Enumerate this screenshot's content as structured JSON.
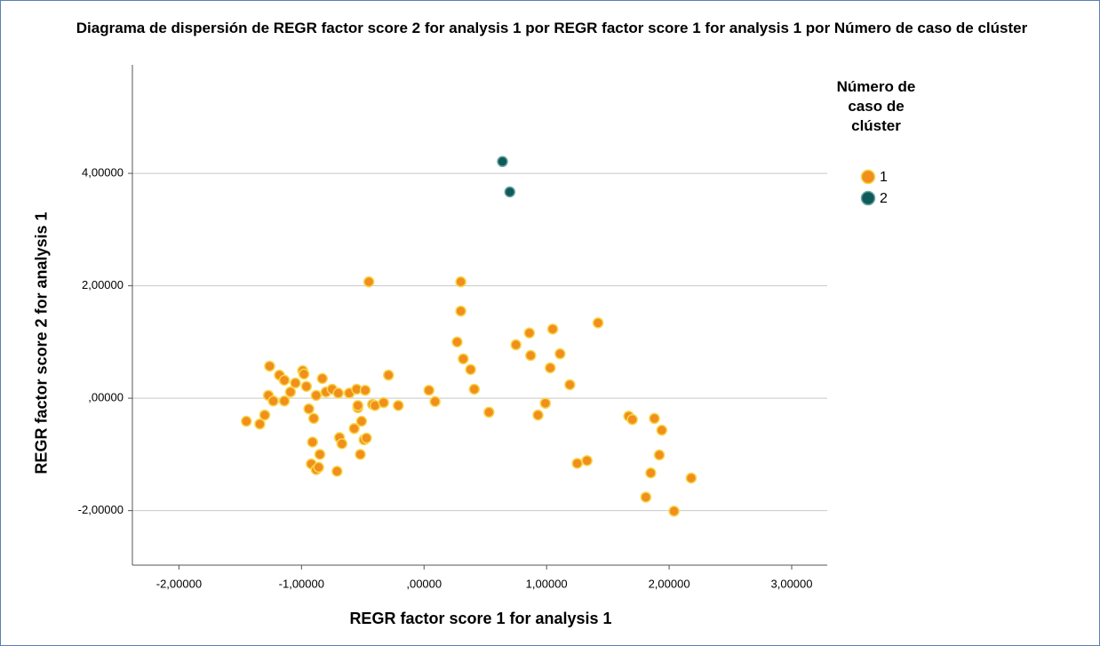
{
  "chart_data": {
    "type": "scatter",
    "title": "Diagrama de dispersión de REGR factor score   2 for analysis 1 por REGR factor score   1 for analysis 1 por Número de caso de clúster",
    "x_label": "REGR factor score   1 for analysis 1",
    "y_label": "REGR factor score   2 for analysis 1",
    "legend_title": "Número de caso de clúster",
    "xlim": [
      -2.38,
      3.29
    ],
    "ylim": [
      -2.97,
      5.93
    ],
    "xticks": [
      {
        "value": -2,
        "label": "-2,00000"
      },
      {
        "value": -1,
        "label": "-1,00000"
      },
      {
        "value": 0,
        "label": ",00000"
      },
      {
        "value": 1,
        "label": "1,00000"
      },
      {
        "value": 2,
        "label": "2,00000"
      },
      {
        "value": 3,
        "label": "3,00000"
      }
    ],
    "yticks": [
      {
        "value": -2,
        "label": "-2,00000"
      },
      {
        "value": 0,
        "label": ",00000"
      },
      {
        "value": 2,
        "label": "2,00000"
      },
      {
        "value": 4,
        "label": "4,00000"
      }
    ],
    "grid": true,
    "legend": "right",
    "series": [
      {
        "name": "1",
        "color": "#f28e1c",
        "x": [
          -1.45,
          -1.34,
          -1.3,
          -1.26,
          -1.27,
          -1.23,
          -1.18,
          -1.14,
          -1.14,
          -1.09,
          -1.05,
          -0.99,
          -0.98,
          -0.96,
          -0.94,
          -0.91,
          -0.9,
          -0.92,
          -0.88,
          -0.88,
          -0.86,
          -0.85,
          -0.83,
          -0.8,
          -0.75,
          -0.71,
          -0.7,
          -0.69,
          -0.67,
          -0.61,
          -0.57,
          -0.55,
          -0.54,
          -0.54,
          -0.52,
          -0.51,
          -0.49,
          -0.47,
          -0.48,
          -0.45,
          -0.42,
          -0.4,
          -0.33,
          -0.29,
          -0.21,
          0.04,
          0.09,
          0.27,
          0.3,
          0.3,
          0.32,
          0.38,
          0.41,
          0.53,
          0.75,
          0.86,
          0.87,
          0.93,
          0.99,
          1.03,
          1.05,
          1.11,
          1.19,
          1.25,
          1.33,
          1.42,
          1.67,
          1.7,
          1.81,
          1.85,
          1.88,
          1.92,
          1.94,
          2.04,
          2.18
        ],
        "values": [
          -0.41,
          -0.46,
          -0.3,
          0.57,
          0.05,
          -0.05,
          0.41,
          -0.05,
          0.32,
          0.11,
          0.27,
          0.49,
          0.43,
          0.21,
          -0.19,
          -0.78,
          -0.36,
          -1.17,
          -1.27,
          0.05,
          -1.23,
          -1.0,
          0.35,
          0.11,
          0.16,
          -1.3,
          0.09,
          -0.7,
          -0.81,
          0.09,
          -0.54,
          0.16,
          -0.17,
          -0.13,
          -1.0,
          -0.41,
          -0.74,
          -0.71,
          0.14,
          2.07,
          -0.11,
          -0.13,
          -0.08,
          0.41,
          -0.13,
          0.14,
          -0.06,
          1.0,
          2.07,
          1.55,
          0.7,
          0.51,
          0.16,
          -0.25,
          0.95,
          1.16,
          0.76,
          -0.3,
          -0.09,
          0.54,
          1.23,
          0.79,
          0.24,
          -1.16,
          -1.11,
          1.34,
          -0.32,
          -0.38,
          -1.76,
          -1.33,
          -0.36,
          -1.01,
          -0.57,
          -2.01,
          -1.42
        ]
      },
      {
        "name": "2",
        "color": "#0f5a5a",
        "x": [
          0.64,
          0.7
        ],
        "values": [
          4.21,
          3.67
        ]
      }
    ]
  }
}
